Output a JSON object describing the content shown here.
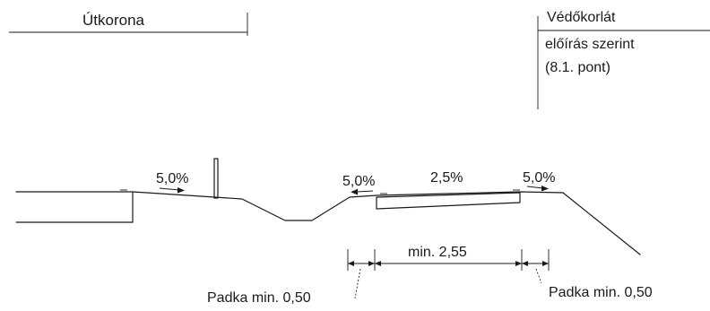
{
  "labels": {
    "utkorona": "Útkorona",
    "vedokorlat": "Védőkorlát",
    "eloiras": "előírás szerint",
    "pont": "(8.1. pont)",
    "slope_left": "5,0%",
    "slope_mid_left": "5,0%",
    "slope_carriage": "2,5%",
    "slope_right": "5,0%",
    "min_width": "min.  2,55",
    "padka_left": "Padka min. 0,50",
    "padka_right": "Padka min. 0,50"
  }
}
